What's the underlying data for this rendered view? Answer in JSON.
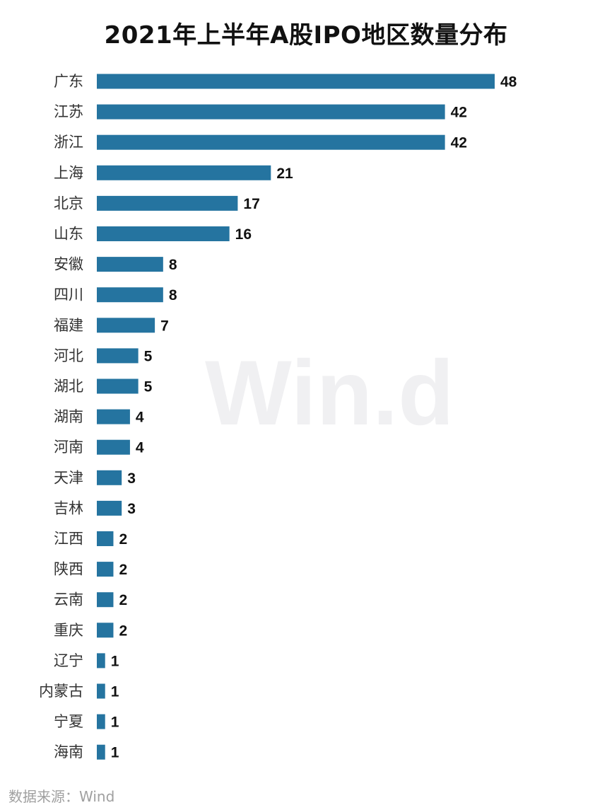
{
  "chart_data": {
    "type": "bar",
    "orientation": "horizontal",
    "title": "2021年上半年A股IPO地区数量分布",
    "categories": [
      "广东",
      "江苏",
      "浙江",
      "上海",
      "北京",
      "山东",
      "安徽",
      "四川",
      "福建",
      "河北",
      "湖北",
      "湖南",
      "河南",
      "天津",
      "吉林",
      "江西",
      "陕西",
      "云南",
      "重庆",
      "辽宁",
      "内蒙古",
      "宁夏",
      "海南"
    ],
    "values": [
      48,
      42,
      42,
      21,
      17,
      16,
      8,
      8,
      7,
      5,
      5,
      4,
      4,
      3,
      3,
      2,
      2,
      2,
      2,
      1,
      1,
      1,
      1
    ],
    "xlabel": "",
    "ylabel": "",
    "xlim": [
      0,
      48
    ],
    "grid": false,
    "legend": "none",
    "bar_color": "#2574a0",
    "data_labels": true
  },
  "watermark": "Win.d",
  "source": "数据来源：Wind"
}
